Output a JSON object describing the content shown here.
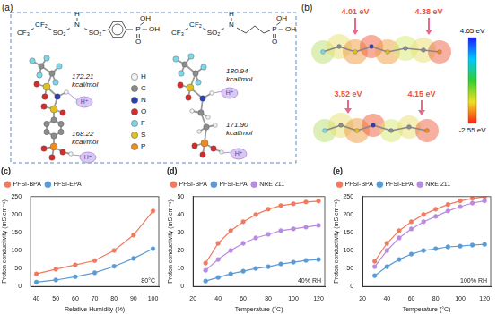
{
  "panel_a": {
    "label": "(a)",
    "proton": "H⁺",
    "molecules": [
      {
        "chain": [
          {
            "t": "CF₃"
          },
          {
            "t": "CF₂"
          },
          {
            "t": "SO₂"
          },
          {
            "t": "N",
            "up": "H"
          },
          {
            "t": "SO₂"
          },
          {
            "t": "P",
            "up": "OH",
            "down": "O",
            "right": "OH"
          }
        ],
        "energies": [
          {
            "text": "172.21",
            "unit": "kcal/mol"
          },
          {
            "text": "168.22",
            "unit": "kcal/mol"
          }
        ]
      },
      {
        "chain": [
          {
            "t": "CF₃"
          },
          {
            "t": "CF₂"
          },
          {
            "t": "SO₂"
          },
          {
            "t": "N",
            "up": "H"
          },
          {
            "t": "P",
            "up": "OH",
            "down": "O",
            "right": "OH"
          }
        ],
        "energies": [
          {
            "text": "180.94",
            "unit": "kcal/mol"
          },
          {
            "text": "171.90",
            "unit": "kcal/mol"
          }
        ]
      }
    ],
    "atom_legend": [
      {
        "label": "H",
        "color": "#f2f2f2"
      },
      {
        "label": "C",
        "color": "#8c8c8c"
      },
      {
        "label": "N",
        "color": "#2b3fb0"
      },
      {
        "label": "O",
        "color": "#d62b2b"
      },
      {
        "label": "F",
        "color": "#7fd6e6"
      },
      {
        "label": "S",
        "color": "#e0c020"
      },
      {
        "label": "P",
        "color": "#f08c1e"
      }
    ]
  },
  "panel_b": {
    "label": "(b)",
    "esp_labels": [
      [
        "4.01 eV",
        "4.38 eV"
      ],
      [
        "3.52 eV",
        "4.15 eV"
      ]
    ],
    "colorbar": {
      "range": [
        -2.55,
        4.65
      ],
      "ticks": [
        {
          "value": 4.65,
          "label": "4.65 eV"
        },
        {
          "value": -2.55,
          "label": "-2.55 eV"
        }
      ]
    }
  },
  "chart_data": [
    {
      "type": "line",
      "title": "(c)",
      "annotations": [
        "80°C"
      ],
      "x_label": "Relative Humidity (%)",
      "y_label": "Proton conductivity (mS cm⁻¹)",
      "x": [
        40,
        50,
        60,
        70,
        80,
        90,
        100
      ],
      "xlim": [
        37,
        103
      ],
      "xticks": [
        40,
        50,
        60,
        70,
        80,
        90,
        100
      ],
      "ylim": [
        0,
        250
      ],
      "yticks": [
        0,
        50,
        100,
        150,
        200,
        250
      ],
      "grid": false,
      "legend": "upper left",
      "series": [
        {
          "name": "PFSI-BPA",
          "color": "#f07a5e",
          "marker": "circle",
          "values": [
            35,
            48,
            60,
            72,
            100,
            143,
            210
          ]
        },
        {
          "name": "PFSI-EPA",
          "color": "#5b9bd5",
          "marker": "circle",
          "values": [
            12,
            18,
            27,
            38,
            56,
            78,
            105
          ]
        }
      ]
    },
    {
      "type": "line",
      "title": "(d)",
      "annotations": [
        "40% RH"
      ],
      "x_label": "Temperature (°C)",
      "y_label": "Proton conductivity (mS cm⁻¹)",
      "x": [
        30,
        40,
        50,
        60,
        70,
        80,
        90,
        100,
        110,
        120
      ],
      "xlim": [
        20,
        125
      ],
      "xticks": [
        20,
        40,
        60,
        80,
        100,
        120
      ],
      "ylim": [
        0,
        50
      ],
      "yticks": [
        0,
        10,
        20,
        30,
        40,
        50
      ],
      "grid": false,
      "legend": "upper left",
      "series": [
        {
          "name": "PFSI-BPA",
          "color": "#f07a5e",
          "marker": "circle",
          "values": [
            13,
            24,
            31,
            36,
            40,
            43,
            45,
            46,
            47,
            47.5
          ]
        },
        {
          "name": "PFSI-EPA",
          "color": "#5b9bd5",
          "marker": "circle",
          "values": [
            3,
            5,
            7,
            8.5,
            10,
            11,
            12.5,
            13.5,
            14.5,
            15
          ]
        },
        {
          "name": "NRE 211",
          "color": "#b88ae0",
          "marker": "circle",
          "values": [
            9,
            15,
            20,
            24,
            27,
            29,
            31,
            32,
            33,
            34
          ]
        }
      ]
    },
    {
      "type": "line",
      "title": "(e)",
      "annotations": [
        "100% RH"
      ],
      "x_label": "Temperature (°C)",
      "y_label": "Proton conductivity (mS cm⁻¹)",
      "x": [
        30,
        40,
        50,
        60,
        70,
        80,
        90,
        100,
        110,
        120
      ],
      "xlim": [
        20,
        125
      ],
      "xticks": [
        20,
        40,
        60,
        80,
        100,
        120
      ],
      "ylim": [
        0,
        250
      ],
      "yticks": [
        0,
        50,
        100,
        150,
        200,
        250
      ],
      "grid": false,
      "legend": "upper left",
      "series": [
        {
          "name": "PFSI-BPA",
          "color": "#f07a5e",
          "marker": "circle",
          "values": [
            70,
            120,
            155,
            180,
            200,
            215,
            228,
            238,
            245,
            250
          ]
        },
        {
          "name": "PFSI-EPA",
          "color": "#5b9bd5",
          "marker": "circle",
          "values": [
            30,
            55,
            75,
            90,
            100,
            105,
            110,
            112,
            115,
            117
          ]
        },
        {
          "name": "NRE 211",
          "color": "#b88ae0",
          "marker": "circle",
          "values": [
            55,
            100,
            135,
            160,
            180,
            195,
            210,
            222,
            232,
            238
          ]
        }
      ]
    }
  ]
}
